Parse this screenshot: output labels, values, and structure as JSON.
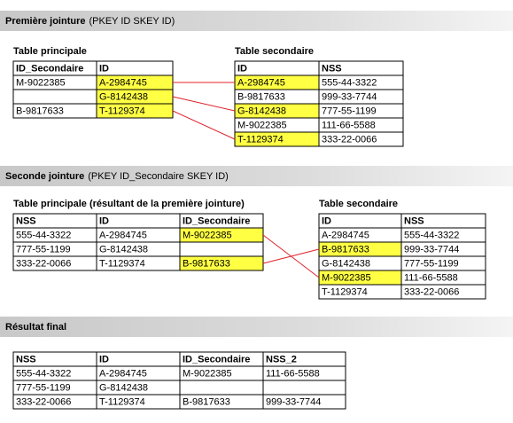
{
  "sections": [
    {
      "title": "Première jointure",
      "subtitle": "(PKEY ID SKEY ID)",
      "tables": [
        {
          "caption": "Table principale",
          "columns": [
            "ID_Secondaire",
            "ID"
          ],
          "rows": [
            [
              "M-9022385",
              "A-2984745"
            ],
            [
              null,
              "G-8142438"
            ],
            [
              "B-9817633",
              "T-1129374"
            ]
          ]
        },
        {
          "caption": "Table secondaire",
          "columns": [
            "ID",
            "NSS"
          ],
          "rows": [
            [
              "A-2984745",
              "555-44-3322"
            ],
            [
              "B-9817633",
              "999-33-7744"
            ],
            [
              "G-8142438",
              "777-55-1199"
            ],
            [
              "M-9022385",
              "111-66-5588"
            ],
            [
              "T-1129374",
              "333-22-0066"
            ]
          ]
        }
      ]
    },
    {
      "title": "Seconde jointure",
      "subtitle": "(PKEY ID_Secondaire SKEY ID)",
      "tables": [
        {
          "caption": "Table principale (résultant de la première jointure)",
          "columns": [
            "NSS",
            "ID",
            "ID_Secondaire"
          ],
          "rows": [
            [
              "555-44-3322",
              "A-2984745",
              "M-9022385"
            ],
            [
              "777-55-1199",
              "G-8142438",
              null
            ],
            [
              "333-22-0066",
              "T-1129374",
              "B-9817633"
            ]
          ]
        },
        {
          "caption": "Table secondaire",
          "columns": [
            "ID",
            "NSS"
          ],
          "rows": [
            [
              "A-2984745",
              "555-44-3322"
            ],
            [
              "B-9817633",
              "999-33-7744"
            ],
            [
              "G-8142438",
              "777-55-1199"
            ],
            [
              "M-9022385",
              "111-66-5588"
            ],
            [
              "T-1129374",
              "333-22-0066"
            ]
          ]
        }
      ]
    },
    {
      "title": "Résultat final",
      "tables": [
        {
          "columns": [
            "NSS",
            "ID",
            "ID_Secondaire",
            "NSS_2"
          ],
          "rows": [
            [
              "555-44-3322",
              "A-2984745",
              "M-9022385",
              "111-66-5588"
            ],
            [
              "777-55-1199",
              "G-8142438",
              null,
              null
            ],
            [
              "333-22-0066",
              "T-1129374",
              "B-9817633",
              "999-33-7744"
            ]
          ]
        }
      ]
    }
  ]
}
